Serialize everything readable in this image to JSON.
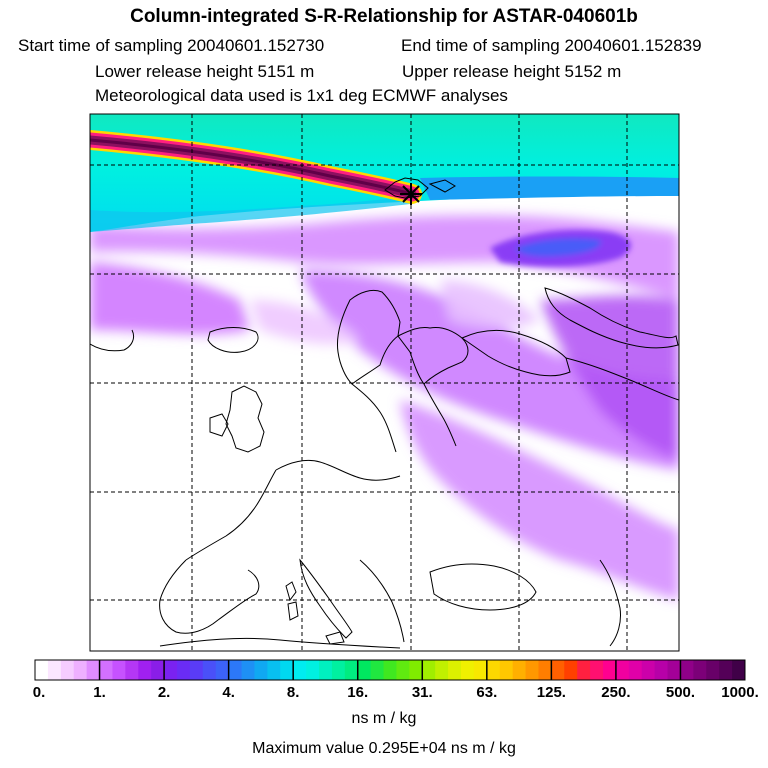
{
  "header": {
    "title": "Column-integrated S-R-Relationship for ASTAR-040601b",
    "start_label": "Start time of sampling 20040601.152730",
    "end_label": "End time of sampling 20040601.152839",
    "lower_label": "Lower release height 5151 m",
    "upper_label": "Upper release height 5152 m",
    "met_label": "Meteorological data used is 1x1 deg ECMWF analyses"
  },
  "colorbar": {
    "labels": [
      "0.",
      "1.",
      "2.",
      "4.",
      "8.",
      "16.",
      "31.",
      "63.",
      "125.",
      "250.",
      "500.",
      "1000."
    ],
    "colors": [
      "#ffffff",
      "#fbe6ff",
      "#f5ccff",
      "#eeb0ff",
      "#e08cff",
      "#d370ff",
      "#c652ff",
      "#b437f5",
      "#a020f0",
      "#8a1ee8",
      "#7a22f0",
      "#6a2cf5",
      "#5a3cf7",
      "#4a50f8",
      "#3c62f8",
      "#2c78f8",
      "#1e90f5",
      "#10a8f2",
      "#08c0f0",
      "#00d8f0",
      "#00ecf0",
      "#00f0e0",
      "#00f0c0",
      "#00f0a0",
      "#00ec80",
      "#00e860",
      "#20e840",
      "#40e820",
      "#60ea10",
      "#80ec00",
      "#a0ee00",
      "#c0f000",
      "#dcf000",
      "#f0f000",
      "#f8e800",
      "#fcd800",
      "#ffc800",
      "#ffb000",
      "#ff9800",
      "#ff7e00",
      "#ff6000",
      "#ff4000",
      "#ff2040",
      "#ff1070",
      "#ff0090",
      "#f000a0",
      "#e000a8",
      "#cc00aa",
      "#b800a8",
      "#a40098",
      "#900088",
      "#7c0078",
      "#680068",
      "#540058",
      "#400048"
    ]
  },
  "units": "ns m / kg",
  "max_value": "Maximum value  0.295E+04 ns m / kg",
  "map": {
    "marker": "receptor-star-icon",
    "plume_color": "#a01060"
  }
}
